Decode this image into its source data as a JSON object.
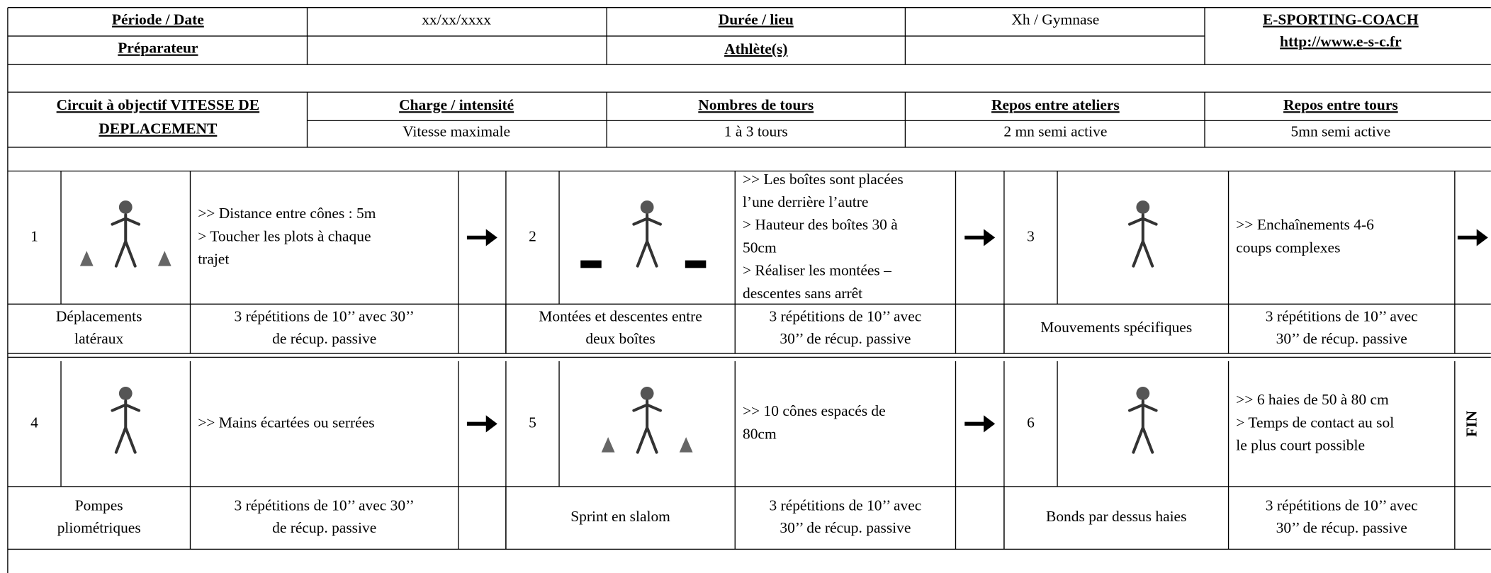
{
  "header": {
    "period_label": "Période / Date",
    "date": "xx/xx/xxxx",
    "duration_label": "Durée / lieu",
    "duration": "Xh / Gymnase",
    "brand": "E-SPORTING-COACH",
    "url": "http://www.e-s-c.fr",
    "preparer_label": "Préparateur",
    "athletes_label": "Athlète(s)"
  },
  "circuit": {
    "title_lines": [
      "Circuit à objectif VITESSE DE",
      "DEPLACEMENT"
    ],
    "columns": [
      {
        "label": "Charge / intensité",
        "value": "Vitesse maximale"
      },
      {
        "label": "Nombres de tours",
        "value": "1 à 3 tours"
      },
      {
        "label": "Repos entre ateliers",
        "value": "2 mn semi active"
      },
      {
        "label": "Repos entre tours",
        "value": "5mn semi active"
      }
    ]
  },
  "exercises": [
    {
      "number": "1",
      "description": [
        ">> Distance entre cônes : 5m",
        "> Toucher les plots à chaque",
        "trajet"
      ],
      "name": [
        "Déplacements",
        "latéraux"
      ],
      "detail": [
        "3 répétitions de 10’’ avec 30’’",
        "de récup. passive"
      ]
    },
    {
      "number": "2",
      "description": [
        ">> Les boîtes sont placées",
        "l’une derrière l’autre",
        "> Hauteur des boîtes 30 à",
        "50cm",
        "> Réaliser les montées –",
        "descentes sans arrêt"
      ],
      "name": [
        "Montées et descentes entre",
        "deux boîtes"
      ],
      "detail": [
        "3 répétitions de 10’’ avec",
        "30’’ de récup. passive"
      ]
    },
    {
      "number": "3",
      "description": [
        ">> Enchaînements 4-6",
        "coups complexes"
      ],
      "name": [
        "Mouvements spécifiques"
      ],
      "detail": [
        "3 répétitions de 10’’ avec",
        "30’’ de récup. passive"
      ]
    },
    {
      "number": "4",
      "description": [
        ">> Mains écartées ou serrées"
      ],
      "name": [
        "Pompes",
        "pliométriques"
      ],
      "detail": [
        "3 répétitions de 10’’ avec 30’’",
        "de récup. passive"
      ]
    },
    {
      "number": "5",
      "description": [
        ">> 10 cônes espacés de",
        "80cm"
      ],
      "name": [
        "Sprint en slalom"
      ],
      "detail": [
        "3 répétitions de 10’’ avec",
        "30’’ de récup. passive"
      ]
    },
    {
      "number": "6",
      "description": [
        ">> 6 haies de 50 à 80 cm",
        "> Temps de contact au sol",
        "le plus court possible"
      ],
      "name": [
        "Bonds par dessus haies"
      ],
      "detail": [
        "3 répétitions de 10’’ avec",
        "30’’ de récup. passive"
      ]
    }
  ],
  "end_label": "FIN"
}
